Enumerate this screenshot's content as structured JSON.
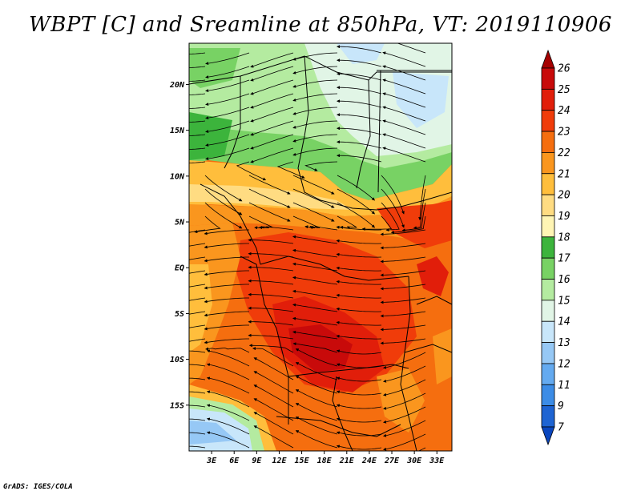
{
  "title": "WBPT [C] and Sreamline at 850hPa, VT: 2019110906",
  "map": {
    "lat_labels": [
      "20N",
      "15N",
      "10N",
      "5N",
      "EQ",
      "5S",
      "10S",
      "15S"
    ],
    "lat_values": [
      20,
      15,
      10,
      5,
      0,
      -5,
      -10,
      -15
    ],
    "lon_labels": [
      "3E",
      "6E",
      "9E",
      "12E",
      "15E",
      "18E",
      "21E",
      "24E",
      "27E",
      "30E",
      "33E"
    ],
    "lon_values": [
      3,
      6,
      9,
      12,
      15,
      18,
      21,
      24,
      27,
      30,
      33
    ],
    "lon_range": [
      0,
      35
    ],
    "lat_range": [
      -20,
      24.5
    ]
  },
  "colorbar": {
    "levels": [
      "26",
      "25",
      "24",
      "23",
      "22",
      "21",
      "20",
      "19",
      "18",
      "17",
      "16",
      "15",
      "14",
      "13",
      "12",
      "11",
      "9",
      "7"
    ],
    "colors": [
      "#a50000",
      "#c80a0a",
      "#e11e0a",
      "#f03c0a",
      "#f56e0f",
      "#fa961e",
      "#ffbe3c",
      "#ffdc82",
      "#fff5b4",
      "#3cb43c",
      "#78d264",
      "#b4eba0",
      "#e1f5e6",
      "#c8e6fa",
      "#96c8f5",
      "#64aaf0",
      "#3c8ce6",
      "#1e64d2",
      "#0a46be"
    ]
  },
  "credit": "GrADS: IGES/COLA"
}
